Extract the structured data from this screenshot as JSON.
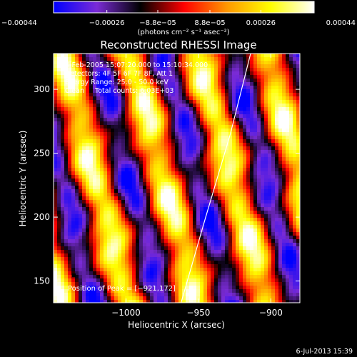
{
  "chart_data": {
    "type": "heatmap",
    "title": "Reconstructed RHESSI Image",
    "xlabel": "Heliocentric X (arcsec)",
    "ylabel": "Heliocentric Y (arcsec)",
    "xlim": [
      -1050,
      -880
    ],
    "ylim": [
      133,
      328
    ],
    "x_ticks": [
      -1000,
      -950,
      -900
    ],
    "x_tick_labels": [
      "−1000",
      "−950",
      "−900"
    ],
    "y_ticks": [
      150,
      200,
      250,
      300
    ],
    "y_tick_labels": [
      "150",
      "200",
      "250",
      "300"
    ],
    "colorbar": {
      "range": [
        -0.00044,
        0.00044
      ],
      "ticks": [
        -0.00044,
        -0.00026,
        -8.8e-05,
        8.8e-05,
        0.00026,
        0.00044
      ],
      "tick_labels": [
        "−0.00044",
        "−0.00026",
        "−8.8e−05",
        "8.8e−05",
        "0.00026",
        "0.00044"
      ],
      "units_label": "(photons cm⁻² s⁻¹ asec⁻²)",
      "colormap": [
        "#0000ff",
        "#7a2bd6",
        "#000000",
        "#ff0000",
        "#ff9900",
        "#ffff00",
        "#ffffff"
      ]
    },
    "annotations": [
      "4-Feb-2005 15:07:20.000 to 15:10:34.000",
      "Detectors: 4F 5F 6F 7F 8F, Att 1",
      "Energy Range: 25.0 - 50.0 keV",
      "Clean     Total counts: 6.03E+03"
    ],
    "peak": {
      "x": -921,
      "y": 172,
      "label": "Position of Peak = [−921,172]"
    },
    "limb_line": [
      [
        -962,
        133
      ],
      [
        -945,
        200
      ],
      [
        -928,
        265
      ],
      [
        -914,
        328
      ]
    ],
    "timestamp": "6-Jul-2013 15:39"
  }
}
